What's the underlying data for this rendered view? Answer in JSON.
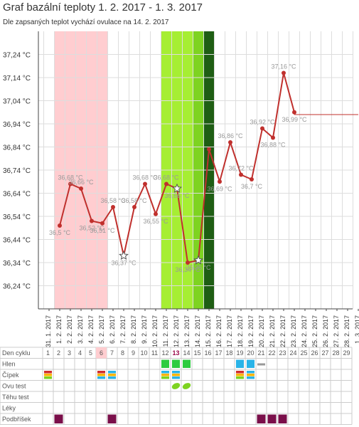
{
  "title": "Graf bazální teploty 1. 2. 2017 - 1. 3. 2017",
  "subtitle": "Dle zapsaných teplot vychází ovulace na 14. 2. 2017",
  "colors": {
    "line": "#c0302d",
    "menstruation": "#ffcdd0",
    "fertile_light": "#a6ee33",
    "fertile_mid": "#7ed321",
    "fertile_dark": "#4c9a1c",
    "ovulation": "#1f5e14",
    "label": "#999999",
    "grid": "#dddddd"
  },
  "chart_data": {
    "type": "line",
    "ylim": [
      36.14,
      37.34
    ],
    "yticks": [
      "36,24 °C",
      "36,34 °C",
      "36,44 °C",
      "36,54 °C",
      "36,64 °C",
      "36,74 °C",
      "36,84 °C",
      "36,94 °C",
      "37,04 °C",
      "37,14 °C",
      "37,24 °C"
    ],
    "ytick_values": [
      36.24,
      36.34,
      36.44,
      36.54,
      36.64,
      36.74,
      36.84,
      36.94,
      37.04,
      37.14,
      37.24
    ],
    "x": [
      "31. 1. 2017",
      "1. 2. 2017",
      "2. 2. 2017",
      "3. 2. 2017",
      "4. 2. 2017",
      "5. 2. 2017",
      "6. 2. 2017",
      "7. 2. 2017",
      "8. 2. 2017",
      "9. 2. 2017",
      "10. 2. 2017",
      "11. 2. 2017",
      "12. 2. 2017",
      "13. 2. 2017",
      "14. 2. 2017",
      "15. 2. 2017",
      "16. 2. 2017",
      "17. 2. 2017",
      "18. 2. 2017",
      "19. 2. 2017",
      "20. 2. 2017",
      "21. 2. 2017",
      "22. 2. 2017",
      "23. 2. 2017",
      "24. 2. 2017",
      "25. 2. 2017",
      "26. 2. 2017",
      "27. 2. 2017",
      "28. 2. 2017",
      "1. 3. 2017"
    ],
    "series": [
      {
        "values": [
          null,
          36.5,
          36.68,
          36.66,
          36.52,
          36.51,
          36.58,
          36.37,
          36.58,
          36.68,
          36.55,
          36.68,
          36.66,
          36.34,
          36.35,
          36.83,
          36.69,
          36.86,
          36.72,
          36.7,
          36.92,
          36.88,
          37.16,
          36.99,
          null,
          null,
          null,
          null,
          null,
          null
        ],
        "labels": [
          "",
          "36,5 °C",
          "36,68 °C",
          "36,66 °C",
          "36,52 °C",
          "36,51 °C",
          "36,58 °C",
          "36,37 °C",
          "36,58 °C",
          "36,68 °C",
          "36,55 °C",
          "36,68 °C",
          "36,66 °C",
          "36,34 °C",
          "36,35 °C",
          "",
          "36,69 °C",
          "36,86 °C",
          "36,72 °C",
          "36,7 °C",
          "36,92 °C",
          "36,88 °C",
          "37,16 °C",
          "36,99 °C",
          "",
          "",
          "",
          "",
          "",
          ""
        ]
      }
    ],
    "coverline": 36.98,
    "stars": [
      7,
      12,
      14
    ],
    "menstruation_days": [
      1,
      2,
      3,
      4,
      5
    ],
    "fertile_days": [
      11,
      12,
      13
    ],
    "fertile_mid_days": [
      14
    ],
    "ovulation_day": 15
  },
  "table": {
    "rows": [
      "Den cyklu",
      "Hlen",
      "Čípek",
      "Ovu test",
      "Těhu test",
      "Léky",
      "Podbříšek"
    ],
    "cycle_days": [
      "1",
      "2",
      "3",
      "4",
      "5",
      "6",
      "7",
      "8",
      "9",
      "10",
      "11",
      "12",
      "13",
      "14",
      "15",
      "16",
      "17",
      "18",
      "19",
      "20",
      "21",
      "22",
      "23",
      "24",
      "25",
      "26",
      "27",
      "28",
      "29"
    ],
    "highlight_day": 6,
    "today_day": 13
  }
}
